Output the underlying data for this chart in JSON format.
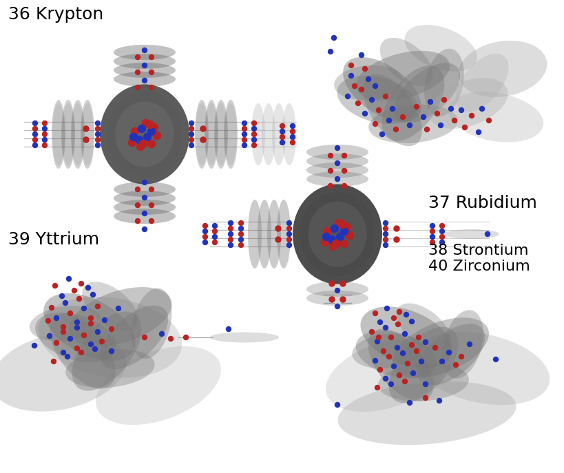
{
  "background_color": "#ffffff",
  "red_color": "#bb2222",
  "blue_color": "#2233bb",
  "dark_gray1": "#3a3a3a",
  "dark_gray2": "#4a4a4a",
  "dark_gray3": "#5a5a5a",
  "mid_gray": "#777777",
  "light_gray": "#aaaaaa",
  "label_krypton": "36 Krypton",
  "label_yttrium": "39 Yttrium",
  "label_rubidium": "37 Rubidium",
  "label_strontium": "38 Strontium",
  "label_zirconium": "40 Zirconium",
  "label_fontsize": 18
}
